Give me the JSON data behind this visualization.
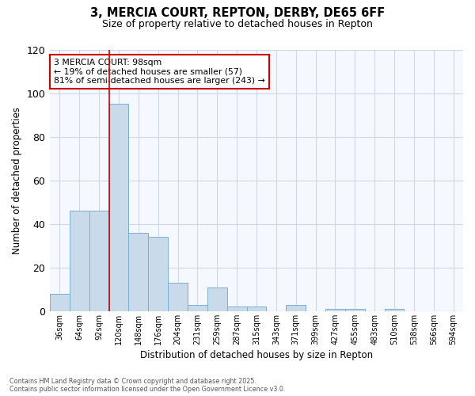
{
  "title1": "3, MERCIA COURT, REPTON, DERBY, DE65 6FF",
  "title2": "Size of property relative to detached houses in Repton",
  "xlabel": "Distribution of detached houses by size in Repton",
  "ylabel": "Number of detached properties",
  "categories": [
    "36sqm",
    "64sqm",
    "92sqm",
    "120sqm",
    "148sqm",
    "176sqm",
    "204sqm",
    "231sqm",
    "259sqm",
    "287sqm",
    "315sqm",
    "343sqm",
    "371sqm",
    "399sqm",
    "427sqm",
    "455sqm",
    "483sqm",
    "510sqm",
    "538sqm",
    "566sqm",
    "594sqm"
  ],
  "values": [
    8,
    46,
    46,
    95,
    36,
    34,
    13,
    3,
    11,
    2,
    2,
    0,
    3,
    0,
    1,
    1,
    0,
    1,
    0,
    0,
    0
  ],
  "bar_color": "#c9daea",
  "bar_edge_color": "#7bafd4",
  "grid_color": "#d0d8e4",
  "bg_color": "#ffffff",
  "plot_bg_color": "#f5f8ff",
  "vline_color": "#cc0000",
  "annotation_text": "3 MERCIA COURT: 98sqm\n← 19% of detached houses are smaller (57)\n81% of semi-detached houses are larger (243) →",
  "annotation_box_color": "#ffffff",
  "annotation_box_edge": "#cc0000",
  "ylim_max": 120,
  "vline_index": 2.5,
  "footer_text": "Contains HM Land Registry data © Crown copyright and database right 2025.\nContains public sector information licensed under the Open Government Licence v3.0."
}
